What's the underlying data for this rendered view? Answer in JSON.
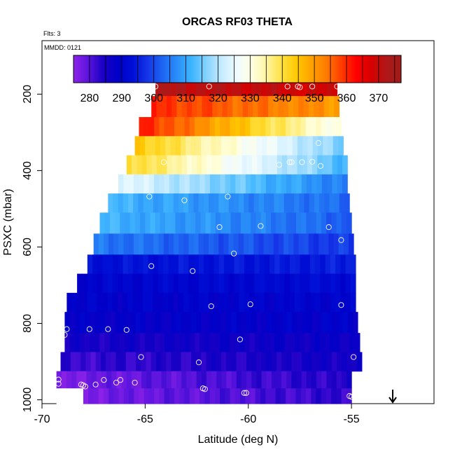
{
  "chart_data": {
    "type": "heatmap",
    "title": "ORCAS RF03 THETA",
    "annotations": {
      "flights": "Flts: 3",
      "date": "MMDD: 0121"
    },
    "xlabel": "Latitude (deg N)",
    "ylabel": "PSXC (mbar)",
    "xlim": [
      -70,
      -51
    ],
    "ylim": [
      1010,
      60
    ],
    "y_reversed": true,
    "x_ticks": [
      -70,
      -65,
      -60,
      -55
    ],
    "x_tick_labels": [
      "-70",
      "-65",
      "-60",
      "-55"
    ],
    "y_ticks": [
      200,
      400,
      600,
      800,
      1000
    ],
    "y_tick_labels": [
      "200",
      "400",
      "600",
      "800",
      "1000"
    ],
    "colorbar": {
      "ticks": [
        280,
        290,
        300,
        310,
        320,
        330,
        340,
        350,
        360,
        370
      ],
      "tick_labels": [
        "280",
        "290",
        "300",
        "310",
        "320",
        "330",
        "340",
        "350",
        "360",
        "370"
      ],
      "range": [
        275,
        377
      ],
      "colors": [
        "#8f22e8",
        "#5a14dd",
        "#1a00c4",
        "#0000c8",
        "#0010d6",
        "#1636e8",
        "#1e66f2",
        "#2a90f8",
        "#40b6ff",
        "#8ad4ff",
        "#c8ecff",
        "#f0fbff",
        "#ffffe0",
        "#fff4a0",
        "#ffe040",
        "#ffc800",
        "#ffa000",
        "#ff7a00",
        "#ff3c00",
        "#ff0000",
        "#d60000",
        "#b01818",
        "#a01a1a"
      ]
    },
    "layers": [
      {
        "p_top": 160,
        "p_bot": 205,
        "lat_min": -64.5,
        "lat_max": -55.7,
        "theta_south": 372,
        "theta_north": 368
      },
      {
        "p_top": 205,
        "p_bot": 260,
        "lat_min": -64.7,
        "lat_max": -55.6,
        "theta_south": 360,
        "theta_north": 350
      },
      {
        "p_top": 260,
        "p_bot": 310,
        "lat_min": -65.3,
        "lat_max": -55.5,
        "theta_south": 362,
        "theta_north": 328
      },
      {
        "p_top": 310,
        "p_bot": 360,
        "lat_min": -65.5,
        "lat_max": -55.4,
        "theta_south": 345,
        "theta_north": 315
      },
      {
        "p_top": 360,
        "p_bot": 410,
        "lat_min": -65.9,
        "lat_max": -55.2,
        "theta_south": 342,
        "theta_north": 312
      },
      {
        "p_top": 410,
        "p_bot": 460,
        "lat_min": -66.3,
        "lat_max": -55.2,
        "theta_south": 325,
        "theta_north": 305
      },
      {
        "p_top": 460,
        "p_bot": 510,
        "lat_min": -66.8,
        "lat_max": -55.1,
        "theta_south": 312,
        "theta_north": 303
      },
      {
        "p_top": 510,
        "p_bot": 565,
        "lat_min": -67.2,
        "lat_max": -55.0,
        "theta_south": 312,
        "theta_north": 302
      },
      {
        "p_top": 565,
        "p_bot": 620,
        "lat_min": -67.5,
        "lat_max": -54.9,
        "theta_south": 305,
        "theta_north": 298
      },
      {
        "p_top": 620,
        "p_bot": 670,
        "lat_min": -67.8,
        "lat_max": -54.8,
        "theta_south": 293,
        "theta_north": 295
      },
      {
        "p_top": 670,
        "p_bot": 720,
        "lat_min": -68.3,
        "lat_max": -54.8,
        "theta_south": 290,
        "theta_north": 292
      },
      {
        "p_top": 720,
        "p_bot": 770,
        "lat_min": -68.8,
        "lat_max": -54.8,
        "theta_south": 289,
        "theta_north": 290
      },
      {
        "p_top": 770,
        "p_bot": 825,
        "lat_min": -68.9,
        "lat_max": -54.7,
        "theta_south": 288,
        "theta_north": 289
      },
      {
        "p_top": 825,
        "p_bot": 875,
        "lat_min": -68.9,
        "lat_max": -54.6,
        "theta_south": 285,
        "theta_north": 287
      },
      {
        "p_top": 875,
        "p_bot": 925,
        "lat_min": -69.1,
        "lat_max": -54.5,
        "theta_south": 282,
        "theta_north": 286
      },
      {
        "p_top": 925,
        "p_bot": 970,
        "lat_min": -69.3,
        "lat_max": -55.0,
        "theta_south": 277,
        "theta_north": 284
      },
      {
        "p_top": 970,
        "p_bot": 1010,
        "lat_min": -68.0,
        "lat_max": -55.0,
        "theta_south": 277,
        "theta_north": 283
      }
    ],
    "points": [
      {
        "lat": -64.5,
        "p": 180
      },
      {
        "lat": -61.9,
        "p": 180
      },
      {
        "lat": -58.1,
        "p": 180
      },
      {
        "lat": -57.6,
        "p": 180
      },
      {
        "lat": -57.5,
        "p": 182
      },
      {
        "lat": -56.9,
        "p": 180
      },
      {
        "lat": -55.7,
        "p": 180
      },
      {
        "lat": -56.6,
        "p": 328
      },
      {
        "lat": -64.1,
        "p": 378
      },
      {
        "lat": -58.5,
        "p": 385
      },
      {
        "lat": -58.0,
        "p": 378
      },
      {
        "lat": -57.9,
        "p": 378
      },
      {
        "lat": -57.4,
        "p": 378
      },
      {
        "lat": -56.9,
        "p": 377
      },
      {
        "lat": -56.5,
        "p": 388
      },
      {
        "lat": -64.8,
        "p": 468
      },
      {
        "lat": -63.1,
        "p": 478
      },
      {
        "lat": -61.0,
        "p": 468
      },
      {
        "lat": -61.4,
        "p": 548
      },
      {
        "lat": -59.4,
        "p": 545
      },
      {
        "lat": -56.1,
        "p": 548
      },
      {
        "lat": -55.5,
        "p": 582
      },
      {
        "lat": -60.7,
        "p": 617
      },
      {
        "lat": -64.7,
        "p": 650
      },
      {
        "lat": -62.7,
        "p": 663
      },
      {
        "lat": -69.0,
        "p": 738
      },
      {
        "lat": -61.8,
        "p": 755
      },
      {
        "lat": -59.9,
        "p": 750
      },
      {
        "lat": -55.5,
        "p": 752
      },
      {
        "lat": -68.8,
        "p": 815
      },
      {
        "lat": -67.7,
        "p": 815
      },
      {
        "lat": -66.8,
        "p": 815
      },
      {
        "lat": -65.9,
        "p": 817
      },
      {
        "lat": -68.9,
        "p": 830
      },
      {
        "lat": -60.4,
        "p": 842
      },
      {
        "lat": -65.2,
        "p": 888
      },
      {
        "lat": -62.4,
        "p": 902
      },
      {
        "lat": -54.9,
        "p": 888
      },
      {
        "lat": -69.2,
        "p": 947
      },
      {
        "lat": -69.2,
        "p": 958
      },
      {
        "lat": -68.1,
        "p": 960
      },
      {
        "lat": -68.0,
        "p": 962
      },
      {
        "lat": -67.9,
        "p": 965
      },
      {
        "lat": -67.4,
        "p": 960
      },
      {
        "lat": -67.0,
        "p": 948
      },
      {
        "lat": -66.4,
        "p": 955
      },
      {
        "lat": -66.2,
        "p": 948
      },
      {
        "lat": -65.5,
        "p": 955
      },
      {
        "lat": -62.2,
        "p": 970
      },
      {
        "lat": -62.1,
        "p": 972
      },
      {
        "lat": -60.2,
        "p": 982
      },
      {
        "lat": -60.1,
        "p": 982
      },
      {
        "lat": -55.1,
        "p": 990
      },
      {
        "lat": -55.0,
        "p": 992
      }
    ],
    "arrow_marker": {
      "lat": -53.0,
      "direction": "down"
    }
  }
}
